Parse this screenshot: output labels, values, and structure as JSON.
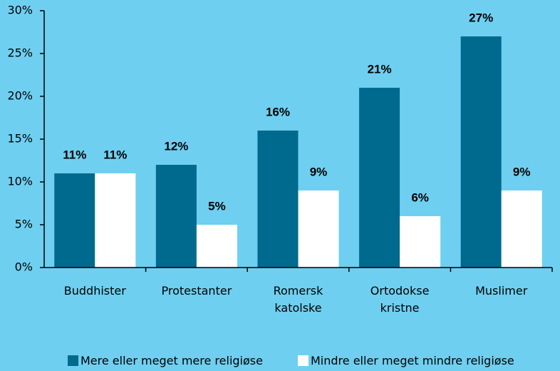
{
  "chart_data": {
    "type": "bar",
    "categories": [
      "Buddhister",
      "Protestanter",
      "Romersk katolske",
      "Ortodokse kristne",
      "Muslimer"
    ],
    "series": [
      {
        "name": "Mere eller meget mere religiøse",
        "color": "#006a8e",
        "values": [
          11,
          12,
          16,
          21,
          27
        ],
        "value_labels": [
          "11%",
          "12%",
          "16%",
          "21%",
          "27%"
        ]
      },
      {
        "name": "Mindre eller meget mindre religiøse",
        "color": "#ffffff",
        "values": [
          11,
          5,
          9,
          6,
          9
        ],
        "value_labels": [
          "11%",
          "5%",
          "9%",
          "6%",
          "9%"
        ]
      }
    ],
    "ylim": [
      0,
      30
    ],
    "yticks": [
      {
        "value": 0,
        "label": "0%"
      },
      {
        "value": 5,
        "label": "5%"
      },
      {
        "value": 10,
        "label": "10%"
      },
      {
        "value": 15,
        "label": "15%"
      },
      {
        "value": 20,
        "label": "20%"
      },
      {
        "value": 25,
        "label": "25%"
      },
      {
        "value": 30,
        "label": "30%"
      }
    ],
    "legend": "bottom"
  }
}
